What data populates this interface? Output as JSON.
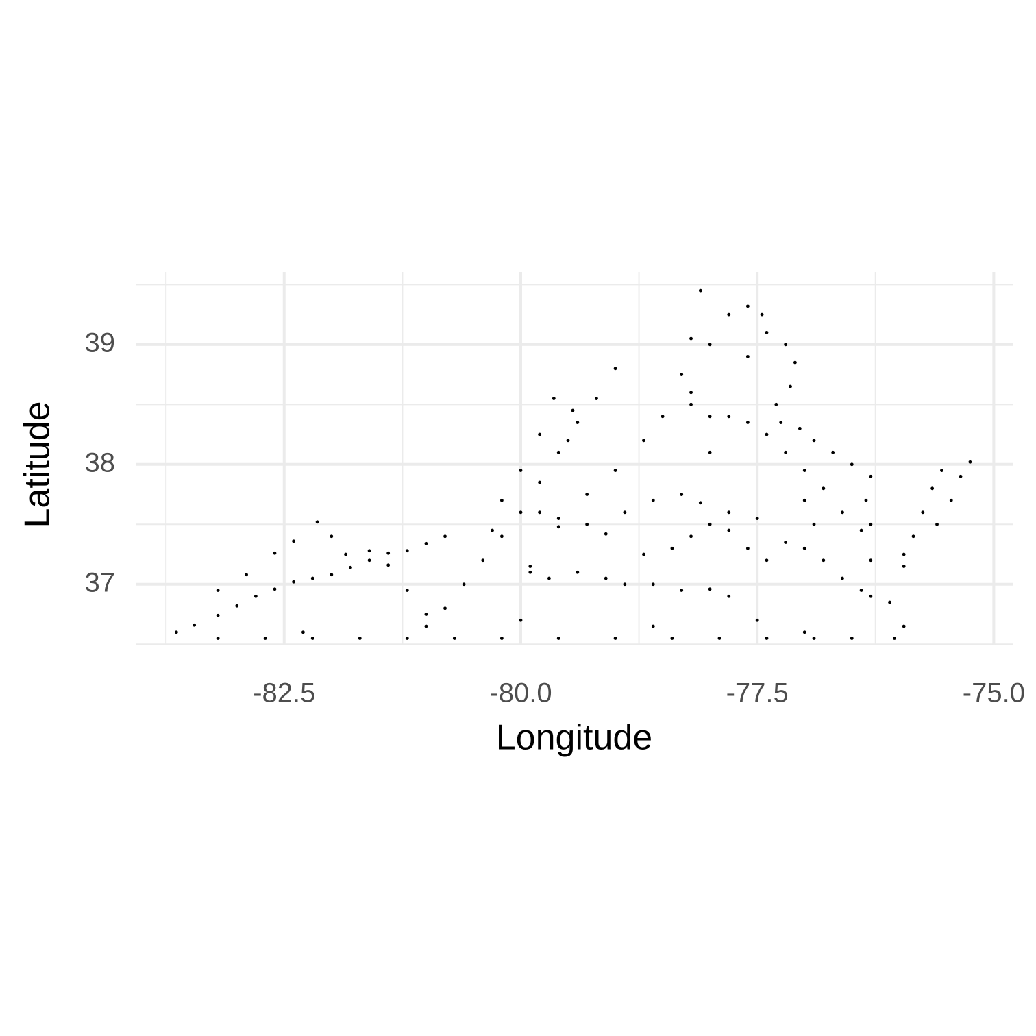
{
  "chart_data": {
    "type": "scatter",
    "x_label": "Longitude",
    "y_label": "Latitude",
    "color": "#000000",
    "grid": true,
    "xlim": [
      -84.07,
      -74.8
    ],
    "ylim": [
      36.49,
      39.605
    ],
    "xticks": [
      -82.5,
      {
        "value": -80,
        "label": "-80.0"
      },
      -77.5,
      {
        "value": -75,
        "label": "-75.0"
      }
    ],
    "yticks": [
      37,
      38,
      39
    ],
    "x_minor_grid": [
      -83.75,
      -81.25,
      -78.75,
      -76.25
    ],
    "y_minor_grid": [
      36.5,
      37.5,
      38.5,
      39.5
    ],
    "x": [
      -83.64,
      -83.45,
      -83.2,
      -83.0,
      -82.8,
      -82.6,
      -82.4,
      -82.2,
      -82.0,
      -81.8,
      -81.6,
      -81.4,
      -81.2,
      -81.0,
      -80.8,
      -83.2,
      -82.9,
      -82.6,
      -82.4,
      -82.15,
      -82.0,
      -81.85,
      -81.6,
      -81.4,
      -81.2,
      -81.0,
      -80.8,
      -80.6,
      -80.4,
      -80.2,
      -80.0,
      -79.8,
      -79.6,
      -79.4,
      -79.2,
      -79.0,
      -80.3,
      -80.2,
      -80.0,
      -79.8,
      -79.65,
      -79.45,
      -79.9,
      -79.6,
      -79.3,
      -79.0,
      -78.7,
      -78.5,
      -78.3,
      -78.2,
      -78.1,
      -78.0,
      -77.8,
      -77.6,
      -77.45,
      -77.4,
      -77.2,
      -77.1,
      -77.15,
      -77.3,
      -77.25,
      -77.05,
      -76.9,
      -76.7,
      -76.5,
      -76.3,
      -78.2,
      -78.0,
      -77.8,
      -77.6,
      -77.4,
      -77.2,
      -77.0,
      -76.8,
      -76.6,
      -76.4,
      -79.8,
      -79.6,
      -79.3,
      -79.1,
      -78.9,
      -78.6,
      -78.3,
      -78.1,
      -77.8,
      -77.5,
      -77.2,
      -77.0,
      -76.8,
      -76.6,
      -76.4,
      -79.9,
      -79.7,
      -79.4,
      -79.1,
      -78.9,
      -78.6,
      -78.3,
      -78.0,
      -77.8,
      -78.7,
      -78.4,
      -78.2,
      -78.0,
      -77.8,
      -77.6,
      -77.4,
      -75.95,
      -75.85,
      -75.75,
      -75.65,
      -75.55,
      -75.95,
      -75.6,
      -75.45,
      -75.35,
      -75.25,
      -76.3,
      -76.1,
      -75.95,
      -76.05,
      -76.3,
      -76.3,
      -76.35,
      -83.2,
      -82.7,
      -82.2,
      -81.7,
      -81.2,
      -80.7,
      -80.2,
      -79.6,
      -79.0,
      -78.4,
      -77.9,
      -77.4,
      -76.9,
      -76.5,
      -82.3,
      -81.0,
      -80.0,
      -78.6,
      -77.5,
      -77.0,
      -79.5,
      -78.2,
      -77.6,
      -78.0,
      -77.0,
      -76.9
    ],
    "values": [
      36.6,
      36.66,
      36.74,
      36.82,
      36.9,
      36.96,
      37.02,
      37.05,
      37.08,
      37.14,
      37.2,
      37.26,
      37.28,
      37.34,
      37.4,
      36.95,
      37.08,
      37.26,
      37.36,
      37.52,
      37.4,
      37.25,
      37.28,
      37.16,
      36.95,
      36.65,
      36.8,
      37.0,
      37.2,
      37.4,
      37.6,
      37.85,
      38.1,
      38.35,
      38.55,
      38.8,
      37.45,
      37.7,
      37.95,
      38.25,
      38.55,
      38.45,
      37.15,
      37.55,
      37.75,
      37.95,
      38.2,
      38.4,
      38.75,
      39.05,
      39.45,
      39.0,
      39.25,
      39.32,
      39.25,
      39.1,
      39.0,
      38.85,
      38.65,
      38.5,
      38.35,
      38.3,
      38.2,
      38.1,
      38.0,
      37.9,
      38.5,
      38.4,
      38.4,
      38.35,
      38.25,
      38.1,
      37.95,
      37.8,
      37.6,
      37.45,
      37.6,
      37.48,
      37.5,
      37.42,
      37.6,
      37.7,
      37.75,
      37.68,
      37.6,
      37.55,
      37.35,
      37.3,
      37.2,
      37.05,
      36.95,
      37.1,
      37.05,
      37.1,
      37.05,
      37.0,
      37.0,
      36.95,
      36.96,
      36.9,
      37.25,
      37.3,
      37.4,
      37.5,
      37.45,
      37.3,
      37.2,
      37.15,
      37.4,
      37.6,
      37.8,
      37.95,
      37.25,
      37.5,
      37.7,
      37.9,
      38.02,
      36.9,
      36.85,
      36.65,
      36.55,
      37.2,
      37.5,
      37.7,
      36.55,
      36.55,
      36.55,
      36.55,
      36.55,
      36.55,
      36.55,
      36.55,
      36.55,
      36.55,
      36.55,
      36.55,
      36.55,
      36.55,
      36.6,
      36.75,
      36.7,
      36.65,
      36.7,
      36.6,
      38.2,
      38.6,
      38.9,
      38.1,
      37.7,
      37.5
    ]
  }
}
